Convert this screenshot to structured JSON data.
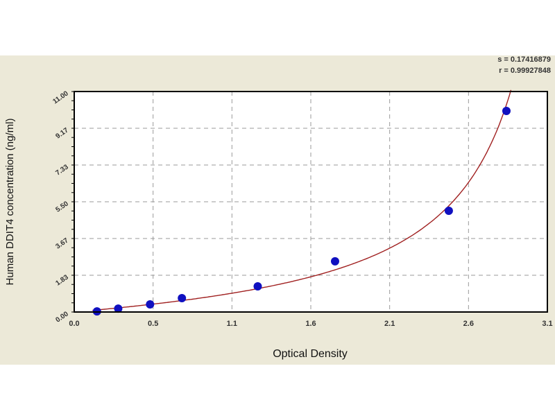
{
  "chart_data": {
    "type": "scatter",
    "title": "",
    "xlabel": "Optical Density",
    "ylabel": "Human DDIT4 concentration (ng/ml)",
    "xlim": [
      0.0,
      3.12
    ],
    "ylim": [
      0.0,
      11.0
    ],
    "x_tick_labels": [
      "0.0",
      "0.5",
      "1.1",
      "1.6",
      "2.1",
      "2.6",
      "3.1"
    ],
    "y_tick_labels": [
      "0.00",
      "1.83",
      "3.67",
      "5.50",
      "7.33",
      "9.17",
      "11.00"
    ],
    "grid": true,
    "fit_curve": true,
    "points": [
      {
        "x": 0.15,
        "y": 0.03
      },
      {
        "x": 0.29,
        "y": 0.17
      },
      {
        "x": 0.5,
        "y": 0.38
      },
      {
        "x": 0.71,
        "y": 0.69
      },
      {
        "x": 1.21,
        "y": 1.28
      },
      {
        "x": 1.72,
        "y": 2.53
      },
      {
        "x": 2.47,
        "y": 5.05
      },
      {
        "x": 2.85,
        "y": 10.03
      }
    ],
    "annotations": [
      "s = 0.17416879",
      "r = 0.99927848"
    ],
    "colors": {
      "points": "#1010C0",
      "curve": "#A02020",
      "background": "#ECE9D8",
      "grid": "#999999"
    }
  }
}
